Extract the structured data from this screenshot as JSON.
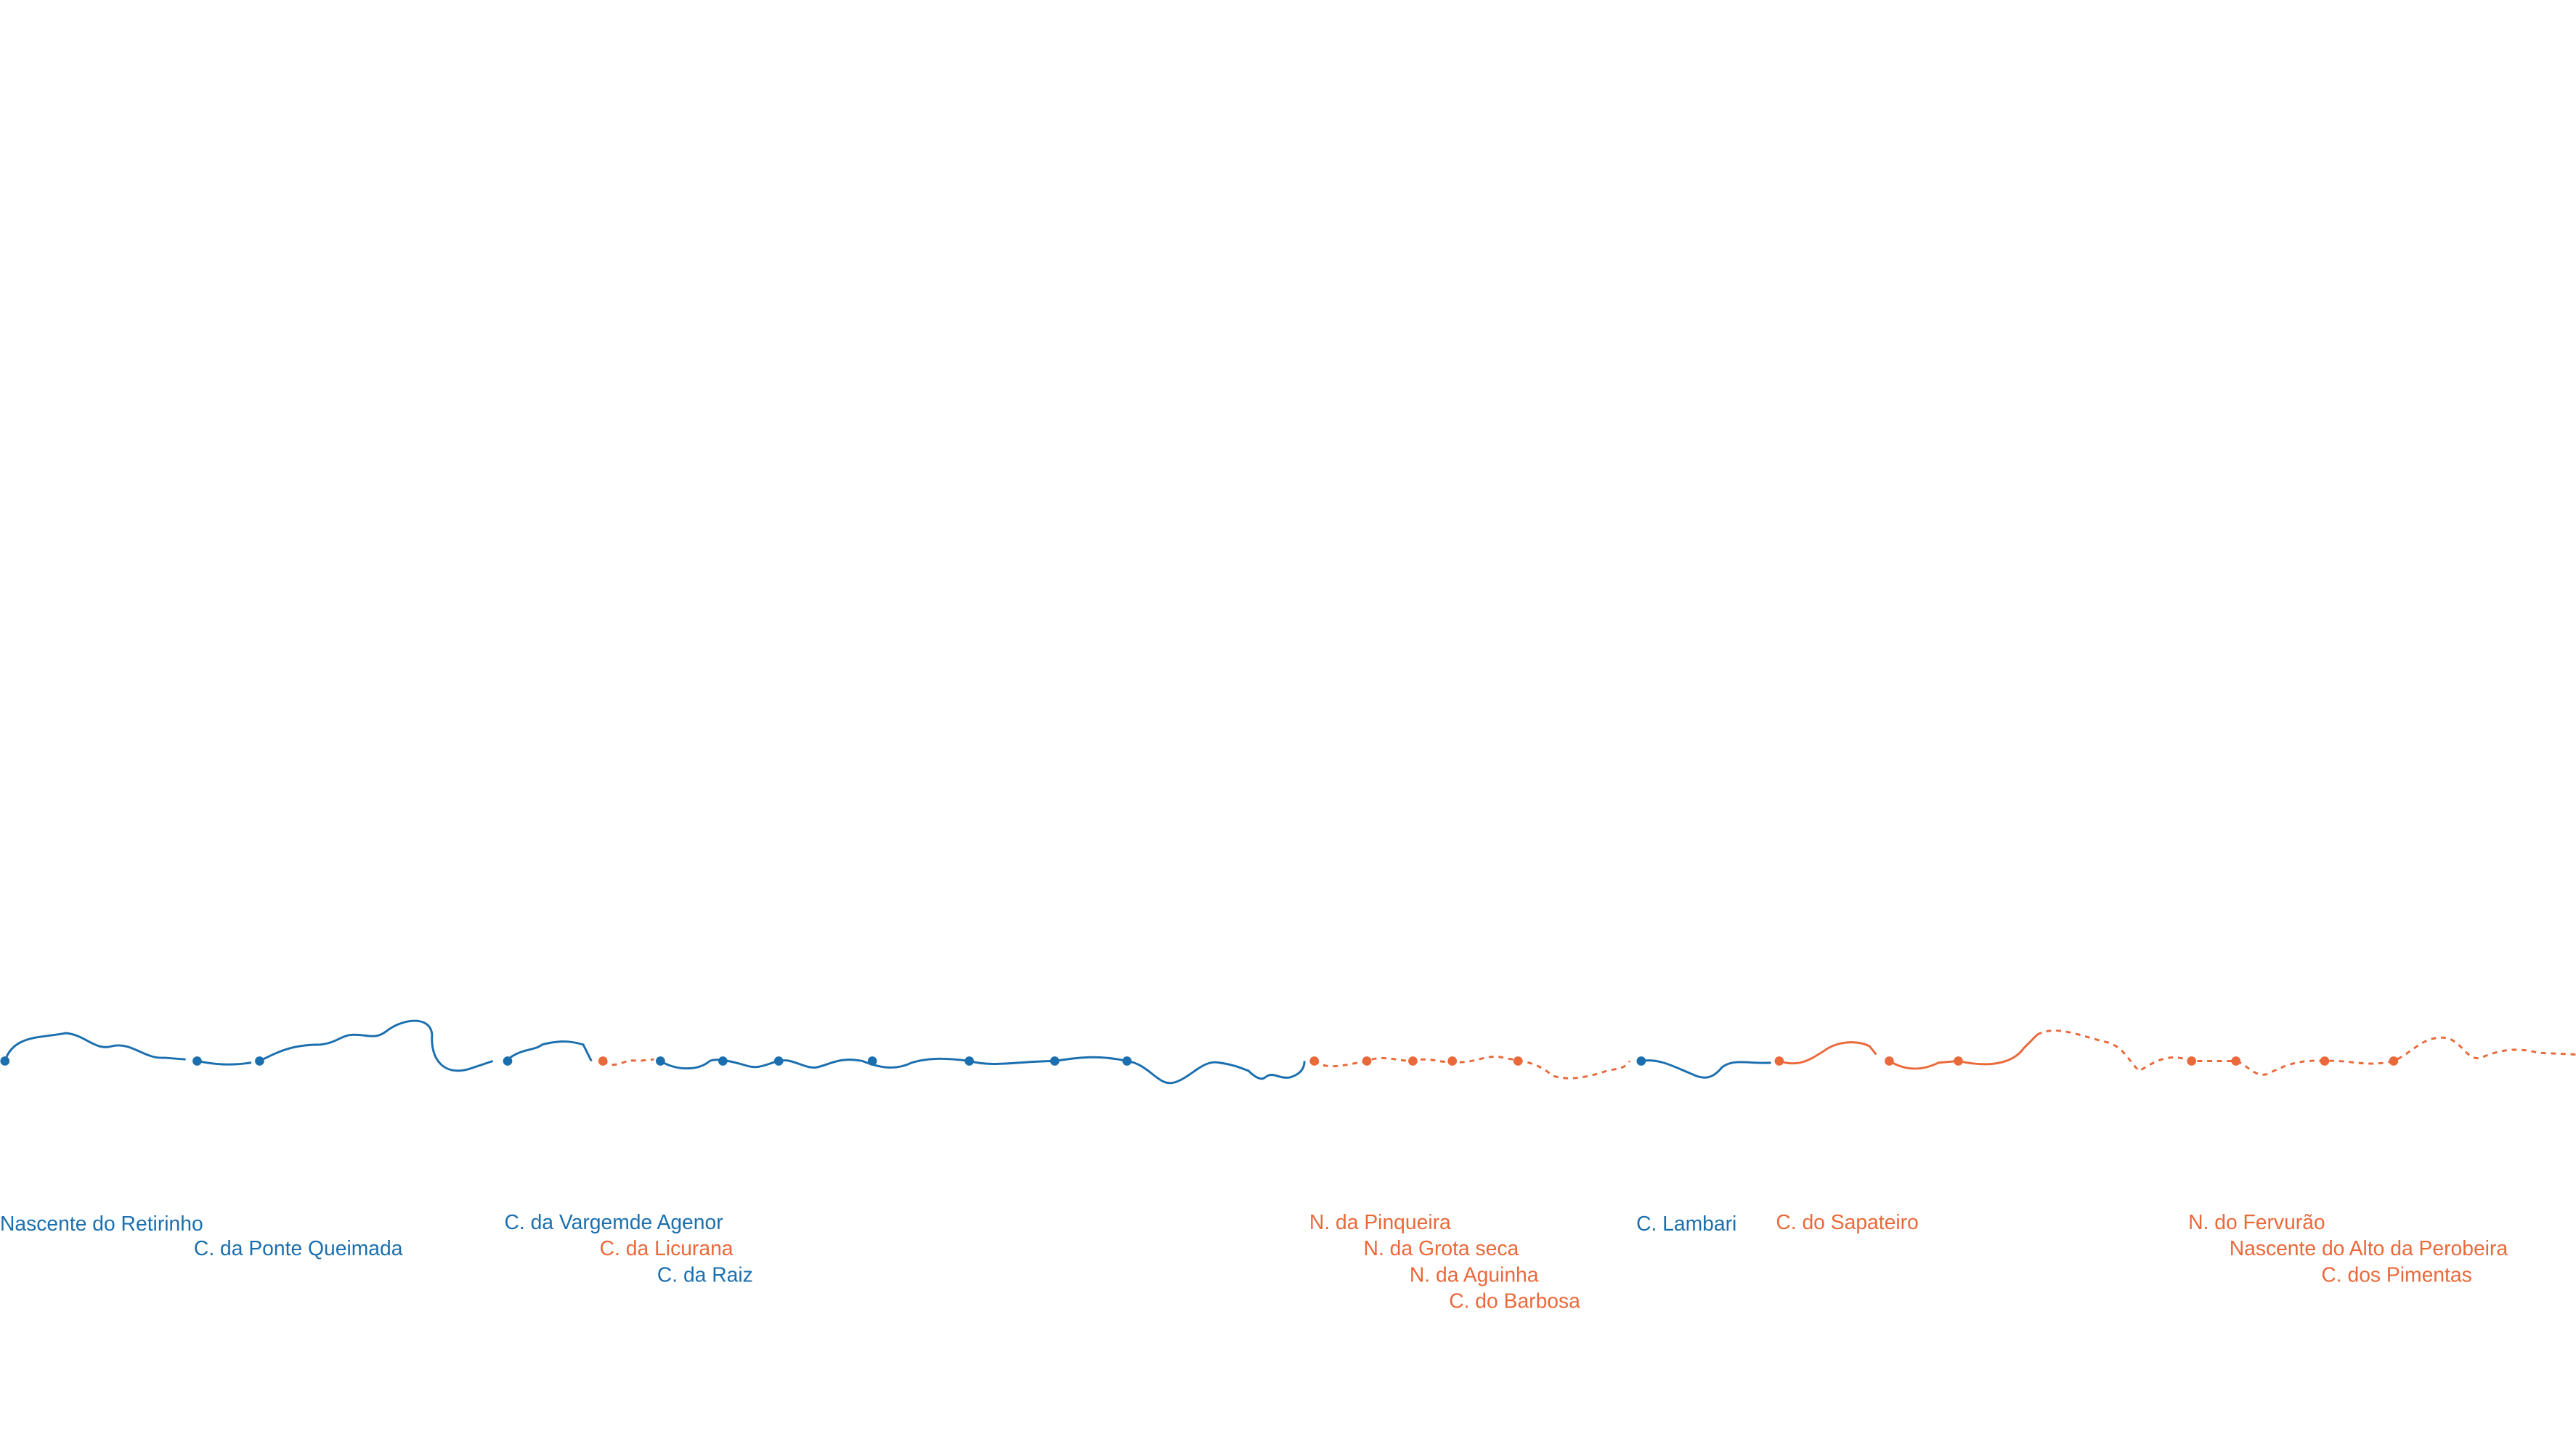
{
  "labels": [
    {
      "text": "Nascente do Retirinho",
      "color": "#1b6fae"
    },
    {
      "text": "C. da Ponte Queimada",
      "color": "#1b6fae"
    },
    {
      "text": "C. da Vargemde Agenor",
      "color": "#1b6fae"
    },
    {
      "text": "C. da Licurana",
      "color": "#e9693a"
    },
    {
      "text": "C. da Raiz",
      "color": "#1b6fae"
    },
    {
      "text": "N. da Pinqueira",
      "color": "#e9693a"
    },
    {
      "text": "N. da Grota seca",
      "color": "#e9693a"
    },
    {
      "text": "N. da Aguinha",
      "color": "#e9693a"
    },
    {
      "text": "C. do Barbosa",
      "color": "#e9693a"
    },
    {
      "text": "C. Lambari",
      "color": "#1b6fae"
    },
    {
      "text": "C. do Sapateiro",
      "color": "#e9693a"
    },
    {
      "text": "N. do Fervurão",
      "color": "#e9693a"
    },
    {
      "text": "Nascente do Alto da Perobeira",
      "color": "#e9693a"
    },
    {
      "text": "C. dos Pimentas",
      "color": "#e9693a"
    }
  ]
}
